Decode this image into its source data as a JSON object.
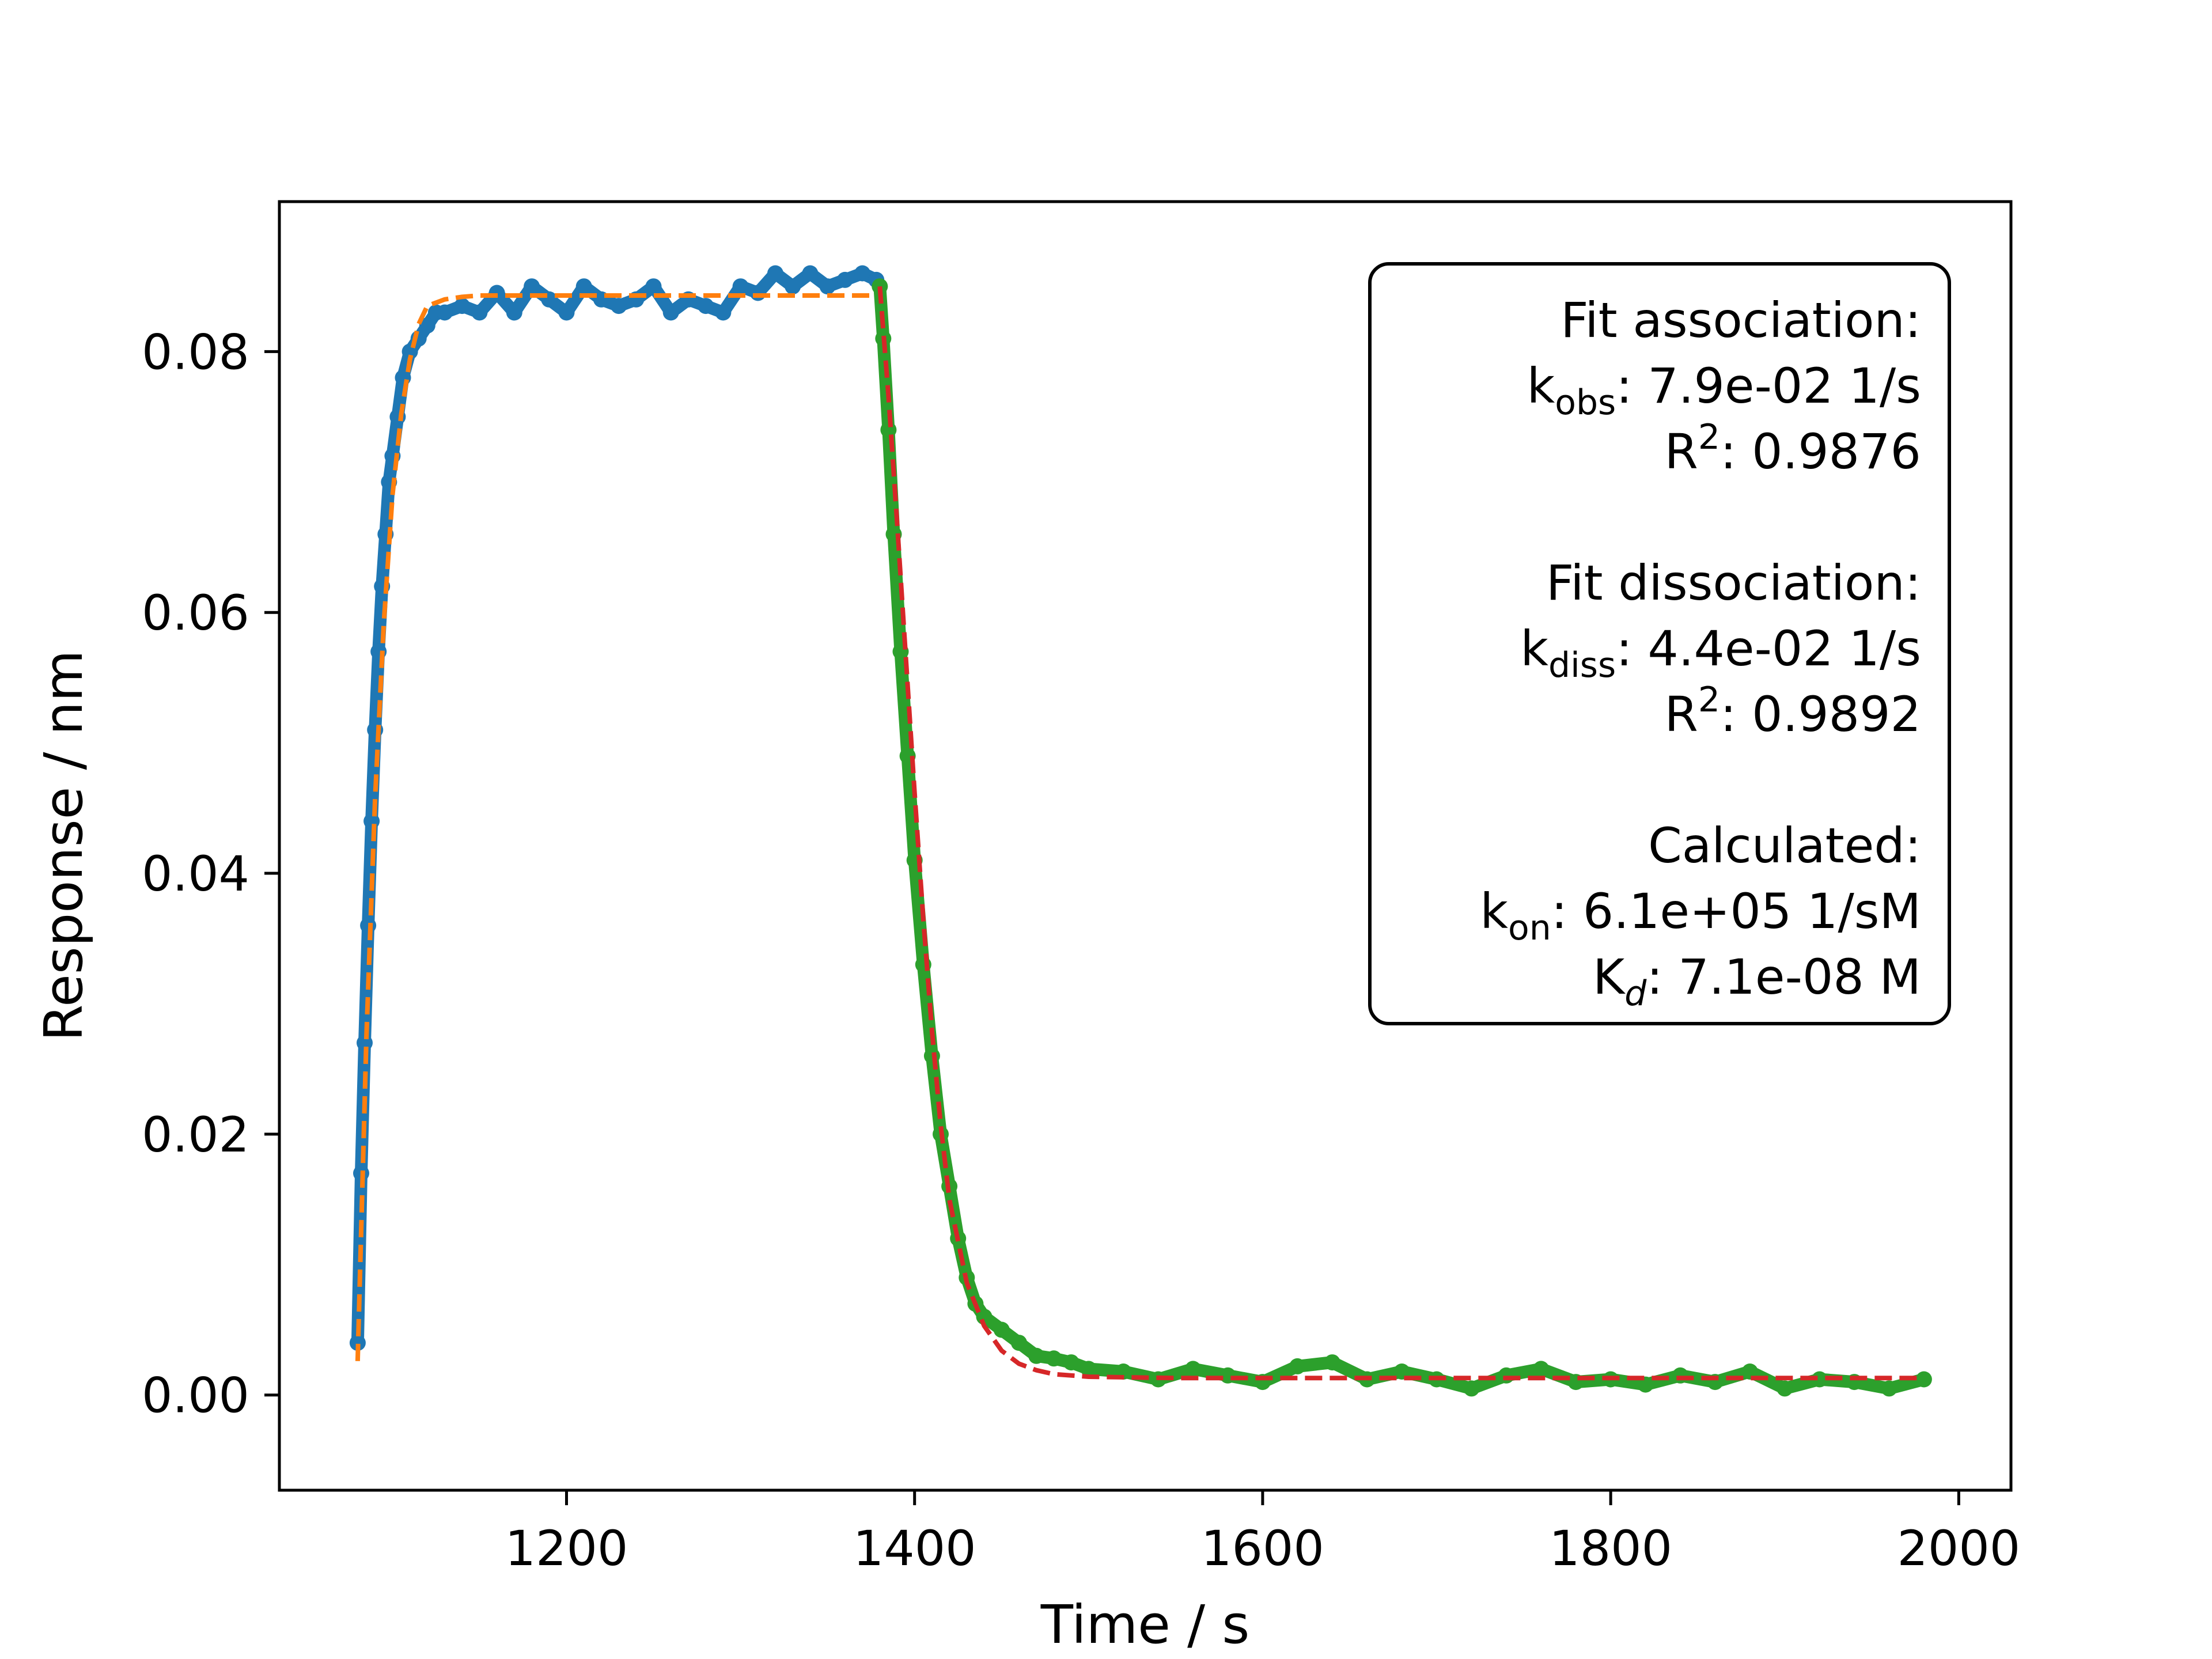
{
  "chart_data": {
    "type": "scatter",
    "title": "",
    "xlabel": "Time / s",
    "ylabel": "Response / nm",
    "xlim": [
      1035,
      2030
    ],
    "ylim": [
      -0.0073,
      0.0915
    ],
    "xticks": [
      1200,
      1400,
      1600,
      1800,
      2000
    ],
    "yticks": [
      0.0,
      0.02,
      0.04,
      0.06,
      0.08
    ],
    "xtick_labels": [
      "1200",
      "1400",
      "1600",
      "1800",
      "2000"
    ],
    "ytick_labels": [
      "0.00",
      "0.02",
      "0.04",
      "0.06",
      "0.08"
    ],
    "grid": false,
    "legend": "none",
    "series": [
      {
        "kind": "points",
        "color": "#1f77b4",
        "x": [
          1080,
          1082,
          1084,
          1086,
          1088,
          1090,
          1092,
          1094,
          1096,
          1098,
          1100,
          1103,
          1106,
          1110,
          1115,
          1120,
          1125,
          1130,
          1140,
          1150,
          1160,
          1170,
          1180,
          1190,
          1200,
          1210,
          1220,
          1230,
          1240,
          1250,
          1260,
          1270,
          1280,
          1290,
          1300,
          1310,
          1320,
          1330,
          1340,
          1350,
          1360,
          1370,
          1378
        ],
        "y": [
          0.004,
          0.017,
          0.027,
          0.036,
          0.044,
          0.051,
          0.057,
          0.062,
          0.066,
          0.07,
          0.072,
          0.075,
          0.078,
          0.08,
          0.081,
          0.082,
          0.083,
          0.083,
          0.0835,
          0.083,
          0.0845,
          0.083,
          0.085,
          0.084,
          0.083,
          0.085,
          0.084,
          0.0835,
          0.084,
          0.085,
          0.083,
          0.084,
          0.0835,
          0.083,
          0.085,
          0.0845,
          0.086,
          0.085,
          0.086,
          0.085,
          0.0855,
          0.086,
          0.0855
        ]
      },
      {
        "kind": "points",
        "color": "#2ca02c",
        "x": [
          1380,
          1382,
          1385,
          1388,
          1392,
          1396,
          1400,
          1405,
          1410,
          1415,
          1420,
          1425,
          1430,
          1435,
          1440,
          1450,
          1460,
          1470,
          1480,
          1490,
          1500,
          1520,
          1540,
          1560,
          1580,
          1600,
          1620,
          1640,
          1660,
          1680,
          1700,
          1720,
          1740,
          1760,
          1780,
          1800,
          1820,
          1840,
          1860,
          1880,
          1900,
          1920,
          1940,
          1960,
          1980
        ],
        "y": [
          0.085,
          0.081,
          0.074,
          0.066,
          0.057,
          0.049,
          0.041,
          0.033,
          0.026,
          0.02,
          0.016,
          0.012,
          0.009,
          0.007,
          0.006,
          0.005,
          0.004,
          0.003,
          0.0028,
          0.0025,
          0.002,
          0.0018,
          0.0012,
          0.002,
          0.0015,
          0.001,
          0.0022,
          0.0025,
          0.0012,
          0.0018,
          0.0012,
          0.0005,
          0.0015,
          0.002,
          0.001,
          0.0012,
          0.0008,
          0.0015,
          0.001,
          0.0018,
          0.0005,
          0.0012,
          0.001,
          0.0005,
          0.0012
        ]
      },
      {
        "kind": "fit",
        "style": "dashed",
        "color": "#ff7f0e",
        "x": [
          1080,
          1085,
          1090,
          1095,
          1100,
          1105,
          1110,
          1115,
          1120,
          1130,
          1140,
          1150,
          1160,
          1180,
          1200,
          1250,
          1300,
          1350,
          1378
        ],
        "y": [
          0.0026,
          0.0275,
          0.0458,
          0.0592,
          0.069,
          0.0752,
          0.0794,
          0.0821,
          0.0835,
          0.084,
          0.0842,
          0.0843,
          0.0843,
          0.0843,
          0.0843,
          0.0843,
          0.0843,
          0.0843,
          0.0843
        ]
      },
      {
        "kind": "fit",
        "style": "dashed",
        "color": "#d62728",
        "x": [
          1380,
          1385,
          1390,
          1395,
          1400,
          1405,
          1410,
          1415,
          1420,
          1430,
          1440,
          1450,
          1460,
          1470,
          1480,
          1500,
          1550,
          1600,
          1700,
          1800,
          1900,
          1980
        ],
        "y": [
          0.085,
          0.0766,
          0.0668,
          0.0565,
          0.0462,
          0.0365,
          0.0279,
          0.0207,
          0.015,
          0.0086,
          0.0053,
          0.0034,
          0.0024,
          0.0019,
          0.0016,
          0.0014,
          0.0013,
          0.0013,
          0.0013,
          0.0013,
          0.0013,
          0.0013
        ]
      }
    ]
  },
  "info_box": {
    "assoc_header": "Fit association:",
    "kobs_symbol": "k",
    "kobs_sub": "obs",
    "kobs_value": ": 7.9e-02 1/s",
    "r2_symbol": "R",
    "r2_sup": "2",
    "assoc_r2_value": ": 0.9876",
    "diss_header": "Fit dissociation:",
    "kdiss_symbol": "k",
    "kdiss_sub": "diss",
    "kdiss_value": ": 4.4e-02 1/s",
    "diss_r2_value": ": 0.9892",
    "calc_header": "Calculated:",
    "kon_symbol": "k",
    "kon_sub": "on",
    "kon_value": ": 6.1e+05 1/sM",
    "kd_symbol": "K",
    "kd_sub": "d",
    "kd_value": ": 7.1e-08 M"
  }
}
